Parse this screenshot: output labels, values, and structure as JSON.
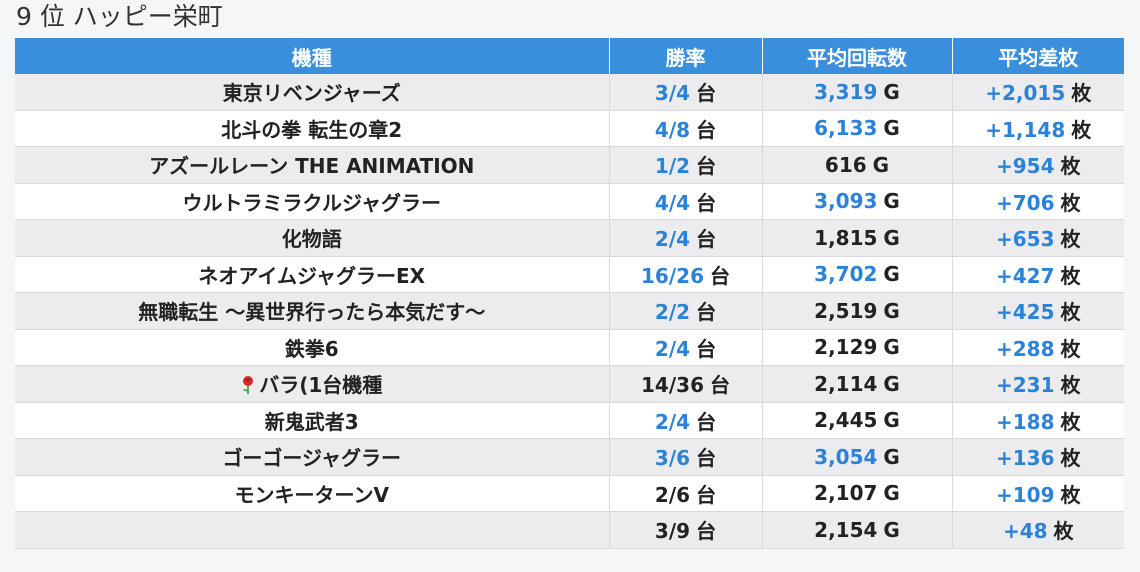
{
  "title": "9 位 ハッピー栄町",
  "columns": [
    "機種",
    "勝率",
    "平均回転数",
    "平均差枚"
  ],
  "units": {
    "rate": "台",
    "spins": "G",
    "diff": "枚"
  },
  "rows": [
    {
      "name": "東京リベンジャーズ",
      "rate": "3/4",
      "rate_blue": true,
      "spins": "3,319",
      "spins_blue": true,
      "diff": "+2,015",
      "diff_blue": true
    },
    {
      "name": "北斗の拳 転生の章2",
      "rate": "4/8",
      "rate_blue": true,
      "spins": "6,133",
      "spins_blue": true,
      "diff": "+1,148",
      "diff_blue": true
    },
    {
      "name": "アズールレーン THE ANIMATION",
      "rate": "1/2",
      "rate_blue": true,
      "spins": "616",
      "spins_blue": false,
      "diff": "+954",
      "diff_blue": true
    },
    {
      "name": "ウルトラミラクルジャグラー",
      "rate": "4/4",
      "rate_blue": true,
      "spins": "3,093",
      "spins_blue": true,
      "diff": "+706",
      "diff_blue": true
    },
    {
      "name": "化物語",
      "rate": "2/4",
      "rate_blue": true,
      "spins": "1,815",
      "spins_blue": false,
      "diff": "+653",
      "diff_blue": true
    },
    {
      "name": "ネオアイムジャグラーEX",
      "rate": "16/26",
      "rate_blue": true,
      "spins": "3,702",
      "spins_blue": true,
      "diff": "+427",
      "diff_blue": true
    },
    {
      "name": "無職転生 ～異世界行ったら本気だす～",
      "rate": "2/2",
      "rate_blue": true,
      "spins": "2,519",
      "spins_blue": false,
      "diff": "+425",
      "diff_blue": true
    },
    {
      "name": "鉄拳6",
      "rate": "2/4",
      "rate_blue": true,
      "spins": "2,129",
      "spins_blue": false,
      "diff": "+288",
      "diff_blue": true
    },
    {
      "name": "バラ(1台機種",
      "icon": "rose-icon",
      "rate": "14/36",
      "rate_blue": false,
      "spins": "2,114",
      "spins_blue": false,
      "diff": "+231",
      "diff_blue": true
    },
    {
      "name": "新鬼武者3",
      "rate": "2/4",
      "rate_blue": true,
      "spins": "2,445",
      "spins_blue": false,
      "diff": "+188",
      "diff_blue": true
    },
    {
      "name": "ゴーゴージャグラー",
      "rate": "3/6",
      "rate_blue": true,
      "spins": "3,054",
      "spins_blue": true,
      "diff": "+136",
      "diff_blue": true
    },
    {
      "name": "モンキーターンV",
      "rate": "2/6",
      "rate_blue": false,
      "spins": "2,107",
      "spins_blue": false,
      "diff": "+109",
      "diff_blue": true
    },
    {
      "name": "",
      "rate": "3/9",
      "rate_blue": false,
      "spins": "2,154",
      "spins_blue": false,
      "diff": "+48",
      "diff_blue": true
    }
  ],
  "colors": {
    "header_bg": "#3a8fdc",
    "accent_blue": "#2b82d9",
    "row_alt": "#ececee"
  }
}
